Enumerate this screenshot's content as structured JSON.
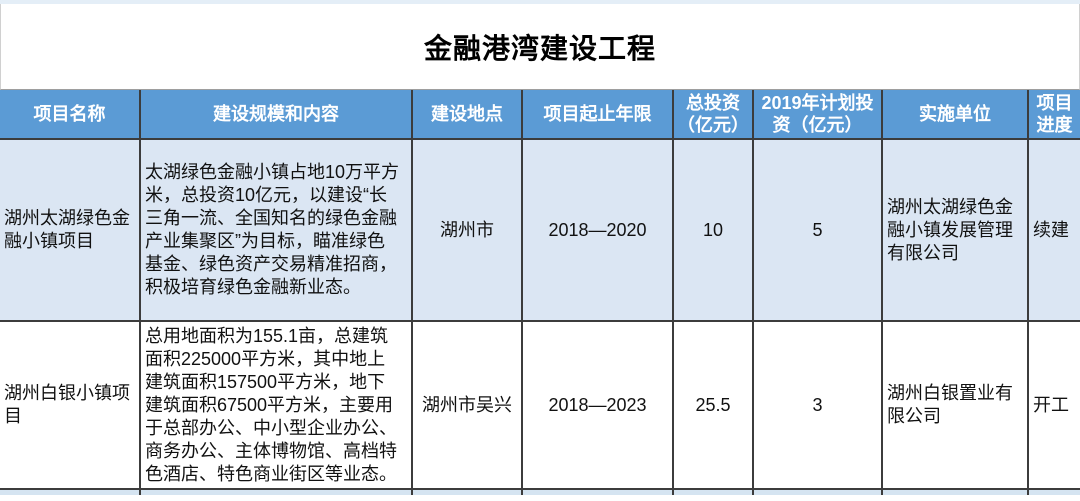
{
  "title": "金融港湾建设工程",
  "colors": {
    "header_bg": "#5B9BD5",
    "row_alt_bg": "#DBE6F3",
    "row_bg": "#FFFFFF",
    "border": "#3C3C3C",
    "top_strip": "#E4EEF7",
    "bottom_sliver": "#D5E4F1",
    "header_text": "#FFFFFF",
    "title_text": "#000000"
  },
  "table": {
    "columns": [
      {
        "key": "name",
        "label": "项目名称"
      },
      {
        "key": "scale",
        "label": "建设规模和内容"
      },
      {
        "key": "location",
        "label": "建设地点"
      },
      {
        "key": "period",
        "label": "项目起止年限"
      },
      {
        "key": "invest",
        "label": "总投资\n（亿元）"
      },
      {
        "key": "plan",
        "label": "2019年计划投\n资（亿元）"
      },
      {
        "key": "unit",
        "label": "实施单位"
      },
      {
        "key": "progress",
        "label": "项目\n进度"
      }
    ],
    "rows": [
      {
        "name": "湖州太湖绿色金\n融小镇项目",
        "scale": "太湖绿色金融小镇占地10万平方\n米，总投资10亿元，以建设“长\n三角一流、全国知名的绿色金融\n产业集聚区”为目标，瞄准绿色\n基金、绿色资产交易精准招商，\n积极培育绿色金融新业态。",
        "location": "湖州市",
        "period": "2018—2020",
        "invest": "10",
        "plan": "5",
        "unit": "湖州太湖绿色金\n融小镇发展管理\n有限公司",
        "progress": "续建"
      },
      {
        "name": "湖州白银小镇项\n目",
        "scale": "总用地面积为155.1亩，总建筑\n面积225000平方米，其中地上\n建筑面积157500平方米，地下\n建筑面积67500平方米，主要用\n于总部办公、中小型企业办公、\n商务办公、主体博物馆、高档特\n色酒店、特色商业街区等业态。",
        "location": "湖州市吴兴",
        "period": "2018—2023",
        "invest": "25.5",
        "plan": "3",
        "unit": "湖州白银置业有\n限公司",
        "progress": "开工"
      }
    ]
  }
}
